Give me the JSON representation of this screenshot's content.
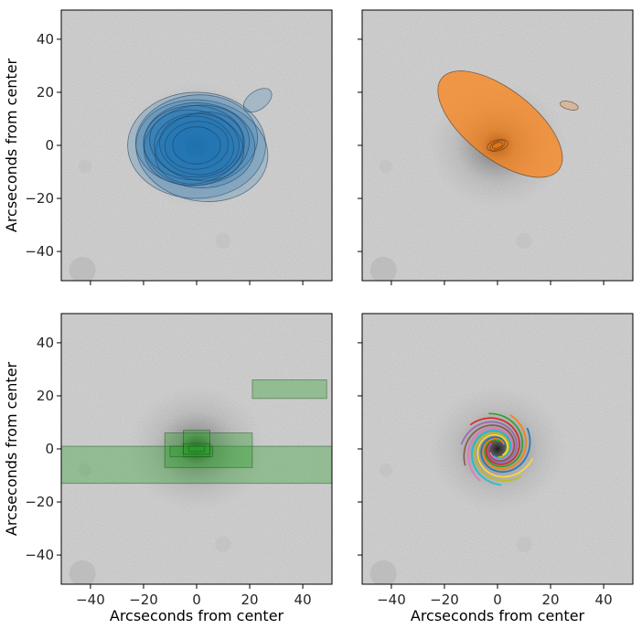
{
  "chart_data": [
    {
      "type": "scatter",
      "panel": "top-left",
      "xlim": [
        -51,
        51
      ],
      "ylim": [
        -51,
        51
      ],
      "xticks": [
        -40,
        -20,
        0,
        20,
        40
      ],
      "yticks": [
        -40,
        -20,
        0,
        20,
        40
      ],
      "ytick_labels": [
        "−40",
        "−20",
        "0",
        "20",
        "40"
      ],
      "xlabel": "",
      "ylabel": "Arcseconds from center",
      "color": "#1f77b4",
      "ellipses": [
        {
          "cx": 0,
          "cy": 0,
          "rx": 26,
          "ry": 20,
          "angle": 0
        },
        {
          "cx": 2,
          "cy": -2,
          "rx": 25,
          "ry": 19,
          "angle": -10
        },
        {
          "cx": 0,
          "cy": 2,
          "rx": 23,
          "ry": 17,
          "angle": 5
        },
        {
          "cx": 1,
          "cy": 0,
          "rx": 21,
          "ry": 16,
          "angle": -5
        },
        {
          "cx": 0,
          "cy": 0,
          "rx": 20,
          "ry": 15,
          "angle": 10
        },
        {
          "cx": -1,
          "cy": 1,
          "rx": 19,
          "ry": 14,
          "angle": 0
        },
        {
          "cx": 0,
          "cy": 0,
          "rx": 18,
          "ry": 13,
          "angle": -15
        },
        {
          "cx": 1,
          "cy": -1,
          "rx": 17,
          "ry": 13,
          "angle": 20
        },
        {
          "cx": 0,
          "cy": 0,
          "rx": 16,
          "ry": 12,
          "angle": 0
        },
        {
          "cx": 0,
          "cy": 0,
          "rx": 14,
          "ry": 11,
          "angle": -8
        },
        {
          "cx": 0,
          "cy": 0,
          "rx": 12,
          "ry": 9,
          "angle": 5
        },
        {
          "cx": 0,
          "cy": 0,
          "rx": 9,
          "ry": 7,
          "angle": 0
        },
        {
          "cx": 23,
          "cy": 17,
          "rx": 6,
          "ry": 3.5,
          "angle": 35
        }
      ]
    },
    {
      "type": "scatter",
      "panel": "top-right",
      "xlim": [
        -51,
        51
      ],
      "ylim": [
        -51,
        51
      ],
      "xticks": [
        -40,
        -20,
        0,
        20,
        40
      ],
      "yticks": [
        -40,
        -20,
        0,
        20,
        40
      ],
      "xlabel": "",
      "ylabel": "",
      "color": "#ff7f0e",
      "ellipses": [
        {
          "cx": 1,
          "cy": 8,
          "rx": 28,
          "ry": 13,
          "angle": -38
        },
        {
          "cx": 0,
          "cy": 0,
          "rx": 4,
          "ry": 2,
          "angle": 15
        },
        {
          "cx": 0,
          "cy": 0,
          "rx": 3,
          "ry": 1.5,
          "angle": 25
        },
        {
          "cx": 0,
          "cy": 0,
          "rx": 2,
          "ry": 1,
          "angle": 20
        },
        {
          "cx": 27,
          "cy": 15,
          "rx": 3.5,
          "ry": 1.5,
          "angle": -15
        }
      ]
    },
    {
      "type": "scatter",
      "panel": "bottom-left",
      "xlim": [
        -51,
        51
      ],
      "ylim": [
        -51,
        51
      ],
      "xticks": [
        -40,
        -20,
        0,
        20,
        40
      ],
      "yticks": [
        -40,
        -20,
        0,
        20,
        40
      ],
      "xtick_labels": [
        "−40",
        "−20",
        "0",
        "20",
        "40"
      ],
      "ytick_labels": [
        "−40",
        "−20",
        "0",
        "20",
        "40"
      ],
      "xlabel": "Arcseconds from center",
      "ylabel": "Arcseconds from center",
      "color": "#2ca02c",
      "boxes": [
        {
          "x0": -51,
          "y0": -13,
          "x1": 51,
          "y1": 1
        },
        {
          "x0": 21,
          "y0": 19,
          "x1": 49,
          "y1": 26
        },
        {
          "x0": -12,
          "y0": -7,
          "x1": 21,
          "y1": 6
        },
        {
          "x0": -5,
          "y0": -3,
          "x1": 5,
          "y1": 7
        },
        {
          "x0": -10,
          "y0": -3,
          "x1": 6,
          "y1": 1
        },
        {
          "x0": -5,
          "y0": -2,
          "x1": 5,
          "y1": 2
        },
        {
          "x0": -3,
          "y0": -1,
          "x1": 3,
          "y1": 1
        }
      ]
    },
    {
      "type": "line",
      "panel": "bottom-right",
      "xlim": [
        -51,
        51
      ],
      "ylim": [
        -51,
        51
      ],
      "xticks": [
        -40,
        -20,
        0,
        20,
        40
      ],
      "yticks": [
        -40,
        -20,
        0,
        20,
        40
      ],
      "xtick_labels": [
        "−40",
        "−20",
        "0",
        "20",
        "40"
      ],
      "xlabel": "Arcseconds from center",
      "ylabel": "",
      "arms": [
        {
          "color": "#1f77b4",
          "a": 3,
          "b": 0.22,
          "t0": 0.0
        },
        {
          "color": "#ff7f0e",
          "a": 3,
          "b": 0.22,
          "t0": 0.6
        },
        {
          "color": "#2ca02c",
          "a": 3,
          "b": 0.22,
          "t0": 1.2
        },
        {
          "color": "#d62728",
          "a": 3,
          "b": 0.22,
          "t0": 1.8
        },
        {
          "color": "#9467bd",
          "a": 3,
          "b": 0.22,
          "t0": 2.4
        },
        {
          "color": "#8c564b",
          "a": 3,
          "b": 0.22,
          "t0": 3.0
        },
        {
          "color": "#e377c2",
          "a": 3,
          "b": 0.22,
          "t0": 3.6
        },
        {
          "color": "#17becf",
          "a": 3,
          "b": 0.22,
          "t0": 4.2
        },
        {
          "color": "#bcbd22",
          "a": 3,
          "b": 0.22,
          "t0": 4.8
        },
        {
          "color": "#ffdd33",
          "a": 3,
          "b": 0.22,
          "t0": 5.4
        }
      ]
    }
  ]
}
